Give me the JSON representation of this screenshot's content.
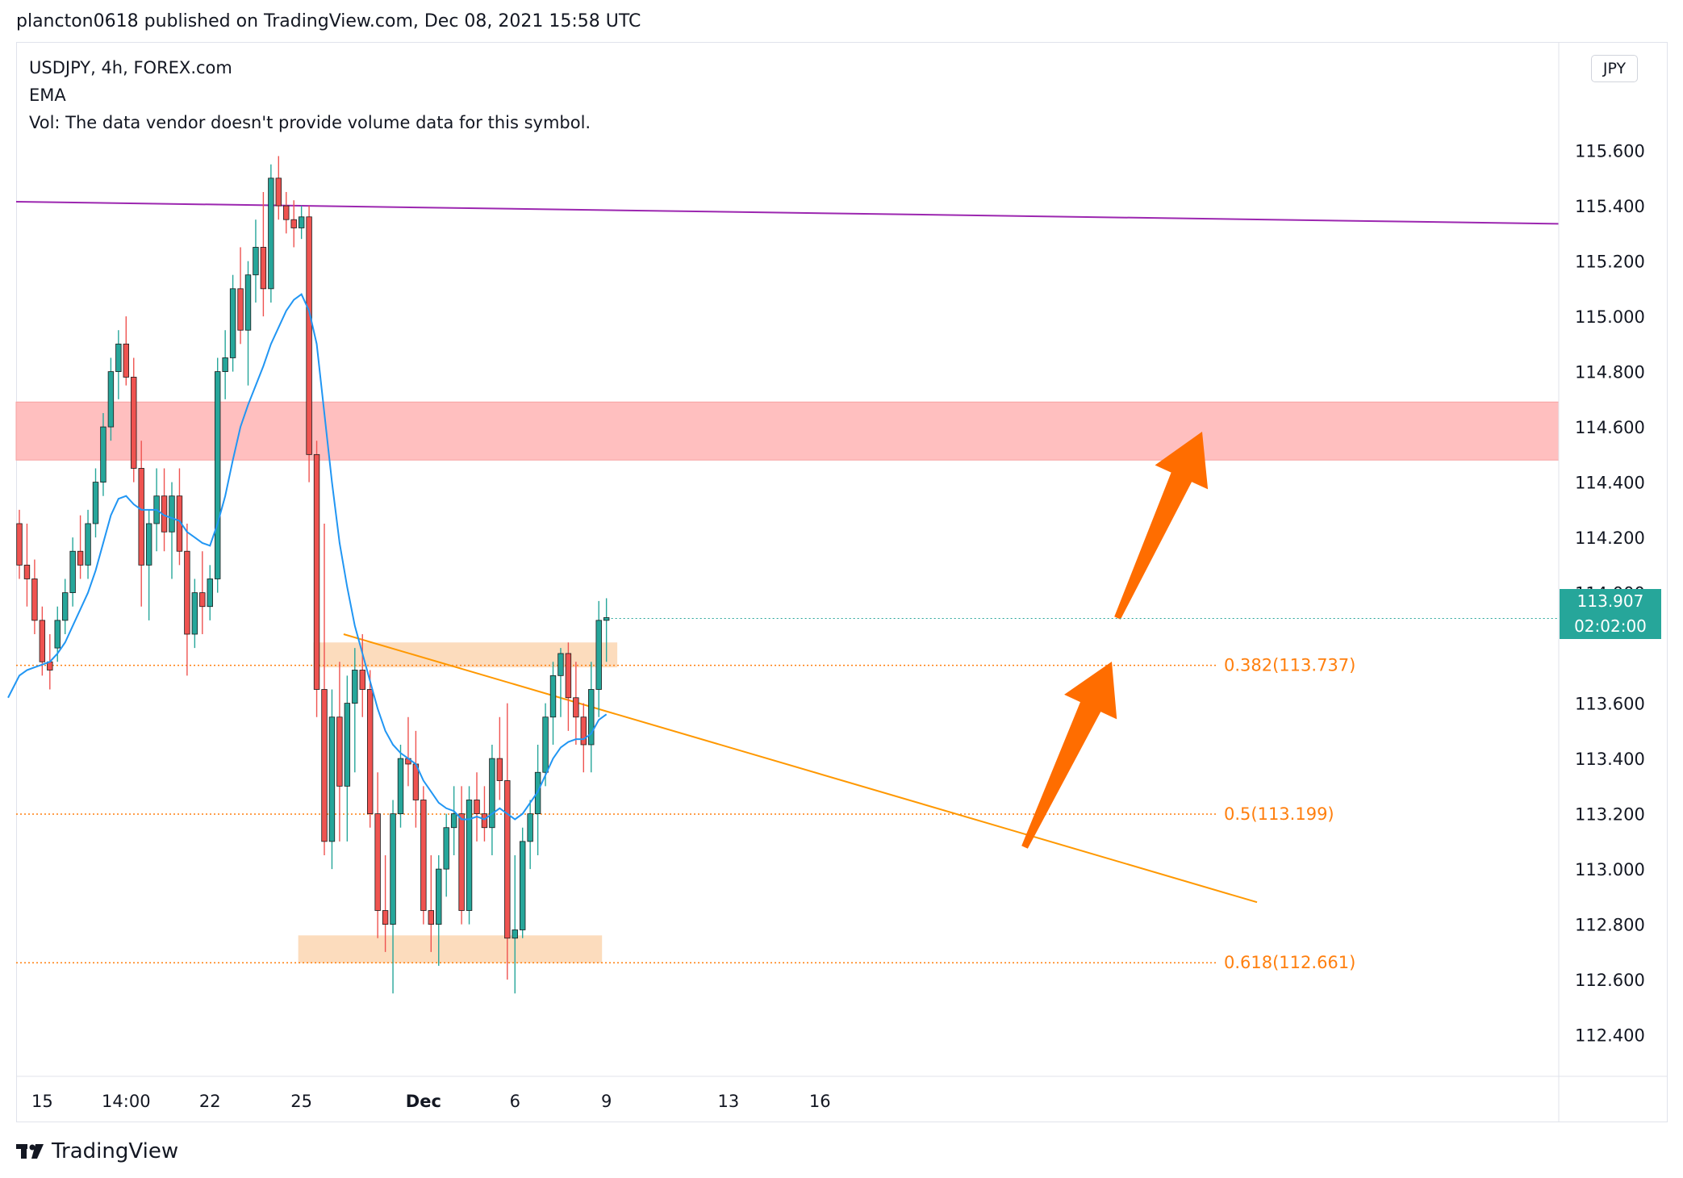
{
  "header": {
    "published": "plancton0618 published on TradingView.com, Dec 08, 2021 15:58 UTC"
  },
  "legend": {
    "symbol": "USDJPY, 4h, FOREX.com",
    "indicator": "EMA",
    "volume": "Vol: The data vendor doesn't provide volume data for this symbol."
  },
  "currency_badge": "JPY",
  "last_price": {
    "value": "113.907",
    "countdown": "02:02:00"
  },
  "footer": {
    "brand": "TradingView"
  },
  "colors": {
    "up": "#26a69a",
    "down": "#ef5350",
    "ema": "#2196f3",
    "resistance_line": "#9c27b0",
    "resistance_zone": "#ffbcbc",
    "fib_zone": "#fcd8b6",
    "fib_text": "#ff7f0e",
    "trendline": "#ff9800",
    "arrow": "#ff6d00"
  },
  "chart_data": {
    "type": "candlestick",
    "symbol": "USDJPY",
    "timeframe": "4h",
    "y_axis": {
      "ticks": [
        "115.600",
        "115.400",
        "115.200",
        "115.000",
        "114.800",
        "114.600",
        "114.400",
        "114.200",
        "114.000",
        "113.600",
        "113.400",
        "113.200",
        "113.000",
        "112.800",
        "112.600",
        "112.400"
      ],
      "range": [
        112.25,
        115.99
      ]
    },
    "x_axis": {
      "ticks": [
        {
          "label": "15",
          "index": 3
        },
        {
          "label": "14:00",
          "index": 14
        },
        {
          "label": "22",
          "index": 25
        },
        {
          "label": "25",
          "index": 37
        },
        {
          "label": "Dec",
          "index": 53,
          "bold": true
        },
        {
          "label": "6",
          "index": 65
        },
        {
          "label": "9",
          "index": 77
        },
        {
          "label": "13",
          "index": 93
        },
        {
          "label": "16",
          "index": 105
        }
      ]
    },
    "candles": [
      [
        114.25,
        114.3,
        114.05,
        114.1
      ],
      [
        114.1,
        114.25,
        113.95,
        114.05
      ],
      [
        114.05,
        114.12,
        113.85,
        113.9
      ],
      [
        113.9,
        113.95,
        113.7,
        113.75
      ],
      [
        113.75,
        113.85,
        113.65,
        113.72
      ],
      [
        113.8,
        113.95,
        113.75,
        113.9
      ],
      [
        113.9,
        114.05,
        113.85,
        114.0
      ],
      [
        114.0,
        114.2,
        113.95,
        114.15
      ],
      [
        114.15,
        114.28,
        114.05,
        114.1
      ],
      [
        114.1,
        114.3,
        114.05,
        114.25
      ],
      [
        114.25,
        114.45,
        114.2,
        114.4
      ],
      [
        114.4,
        114.65,
        114.35,
        114.6
      ],
      [
        114.6,
        114.85,
        114.55,
        114.8
      ],
      [
        114.8,
        114.95,
        114.7,
        114.9
      ],
      [
        114.9,
        115.0,
        114.75,
        114.78
      ],
      [
        114.78,
        114.85,
        114.4,
        114.45
      ],
      [
        114.45,
        114.55,
        113.95,
        114.1
      ],
      [
        114.1,
        114.3,
        113.9,
        114.25
      ],
      [
        114.25,
        114.45,
        114.15,
        114.35
      ],
      [
        114.35,
        114.45,
        114.15,
        114.22
      ],
      [
        114.22,
        114.4,
        114.05,
        114.35
      ],
      [
        114.35,
        114.45,
        114.1,
        114.15
      ],
      [
        114.15,
        114.25,
        113.7,
        113.85
      ],
      [
        113.85,
        114.05,
        113.8,
        114.0
      ],
      [
        114.0,
        114.15,
        113.85,
        113.95
      ],
      [
        113.95,
        114.1,
        113.9,
        114.05
      ],
      [
        114.05,
        114.85,
        114.0,
        114.8
      ],
      [
        114.8,
        114.95,
        114.7,
        114.85
      ],
      [
        114.85,
        115.15,
        114.8,
        115.1
      ],
      [
        115.1,
        115.25,
        114.9,
        114.95
      ],
      [
        114.95,
        115.2,
        114.75,
        115.15
      ],
      [
        115.15,
        115.35,
        115.05,
        115.25
      ],
      [
        115.25,
        115.45,
        115.0,
        115.1
      ],
      [
        115.1,
        115.55,
        115.05,
        115.5
      ],
      [
        115.5,
        115.58,
        115.35,
        115.4
      ],
      [
        115.4,
        115.45,
        115.3,
        115.35
      ],
      [
        115.35,
        115.42,
        115.25,
        115.32
      ],
      [
        115.32,
        115.4,
        115.28,
        115.36
      ],
      [
        115.36,
        115.4,
        114.4,
        114.5
      ],
      [
        114.5,
        114.55,
        113.55,
        113.65
      ],
      [
        113.65,
        114.25,
        113.05,
        113.1
      ],
      [
        113.1,
        113.65,
        113.0,
        113.55
      ],
      [
        113.55,
        113.75,
        113.1,
        113.3
      ],
      [
        113.3,
        113.7,
        113.1,
        113.6
      ],
      [
        113.6,
        113.8,
        113.35,
        113.72
      ],
      [
        113.72,
        113.85,
        113.55,
        113.65
      ],
      [
        113.65,
        113.72,
        113.15,
        113.2
      ],
      [
        113.2,
        113.35,
        112.75,
        112.85
      ],
      [
        112.85,
        113.05,
        112.7,
        112.8
      ],
      [
        112.8,
        113.25,
        112.55,
        113.2
      ],
      [
        113.2,
        113.45,
        113.15,
        113.4
      ],
      [
        113.4,
        113.55,
        113.3,
        113.38
      ],
      [
        113.38,
        113.5,
        113.15,
        113.25
      ],
      [
        113.25,
        113.3,
        112.8,
        112.85
      ],
      [
        112.85,
        113.05,
        112.7,
        112.8
      ],
      [
        112.8,
        113.05,
        112.65,
        113.0
      ],
      [
        113.0,
        113.2,
        112.9,
        113.15
      ],
      [
        113.15,
        113.3,
        113.05,
        113.2
      ],
      [
        113.2,
        113.3,
        112.8,
        112.85
      ],
      [
        112.85,
        113.3,
        112.8,
        113.25
      ],
      [
        113.25,
        113.35,
        113.1,
        113.2
      ],
      [
        113.2,
        113.3,
        113.1,
        113.15
      ],
      [
        113.15,
        113.45,
        113.05,
        113.4
      ],
      [
        113.4,
        113.55,
        113.25,
        113.32
      ],
      [
        113.32,
        113.6,
        112.6,
        112.75
      ],
      [
        112.75,
        113.05,
        112.55,
        112.78
      ],
      [
        112.78,
        113.15,
        112.75,
        113.1
      ],
      [
        113.1,
        113.25,
        113.0,
        113.2
      ],
      [
        113.2,
        113.45,
        113.05,
        113.35
      ],
      [
        113.35,
        113.6,
        113.3,
        113.55
      ],
      [
        113.55,
        113.75,
        113.45,
        113.7
      ],
      [
        113.7,
        113.8,
        113.55,
        113.78
      ],
      [
        113.78,
        113.82,
        113.5,
        113.62
      ],
      [
        113.62,
        113.75,
        113.45,
        113.55
      ],
      [
        113.55,
        113.6,
        113.35,
        113.45
      ],
      [
        113.45,
        113.75,
        113.35,
        113.65
      ],
      [
        113.65,
        113.97,
        113.55,
        113.9
      ],
      [
        113.9,
        113.98,
        113.75,
        113.91
      ]
    ],
    "ema": [
      113.7,
      113.72,
      113.73,
      113.74,
      113.75,
      113.78,
      113.82,
      113.88,
      113.94,
      114.0,
      114.08,
      114.18,
      114.28,
      114.34,
      114.35,
      114.32,
      114.3,
      114.3,
      114.3,
      114.28,
      114.27,
      114.26,
      114.22,
      114.2,
      114.18,
      114.17,
      114.25,
      114.35,
      114.48,
      114.6,
      114.68,
      114.75,
      114.82,
      114.9,
      114.96,
      115.02,
      115.06,
      115.08,
      115.02,
      114.9,
      114.65,
      114.4,
      114.18,
      114.02,
      113.88,
      113.78,
      113.68,
      113.58,
      113.5,
      113.45,
      113.42,
      113.4,
      113.38,
      113.32,
      113.28,
      113.24,
      113.22,
      113.21,
      113.18,
      113.18,
      113.19,
      113.18,
      113.2,
      113.22,
      113.2,
      113.18,
      113.2,
      113.24,
      113.28,
      113.34,
      113.4,
      113.44,
      113.46,
      113.47,
      113.47,
      113.49,
      113.54,
      113.56
    ],
    "horizontal_levels": [
      {
        "label": "0.382(113.737)",
        "price": 113.737
      },
      {
        "label": "0.5(113.199)",
        "price": 113.199
      },
      {
        "label": "0.618(112.661)",
        "price": 112.661
      }
    ],
    "resistance_line": {
      "from": {
        "index": 0,
        "price": 115.415
      },
      "to": {
        "index": 110,
        "price": 115.335
      }
    },
    "resistance_zone": {
      "top": 114.69,
      "bottom": 114.48
    },
    "fib_zones": [
      {
        "index_from": 39,
        "index_to": 78,
        "top": 113.82,
        "bottom": 113.73
      },
      {
        "index_from": 37,
        "index_to": 76,
        "top": 112.76,
        "bottom": 112.66
      }
    ],
    "trendline": {
      "from": {
        "index": 42,
        "price": 113.85
      },
      "to": {
        "index": 88,
        "price": 112.88
      }
    }
  }
}
